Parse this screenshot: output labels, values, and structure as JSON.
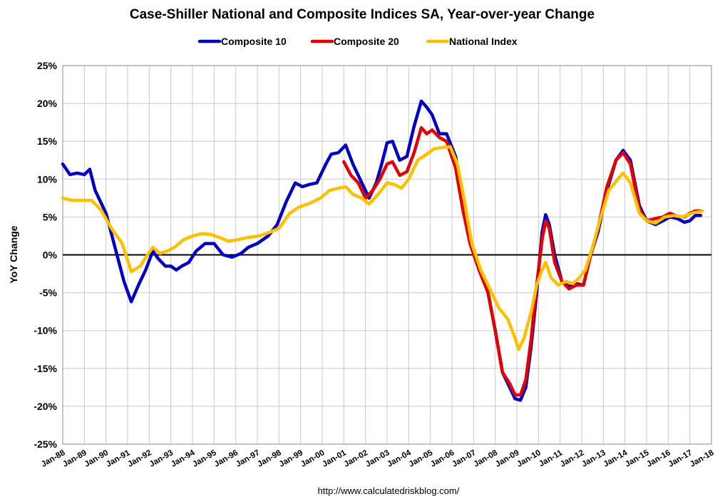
{
  "chart_data": {
    "type": "line",
    "title": "Case-Shiller National and Composite Indices SA, Year-over-year Change",
    "ylabel": "YoY Change",
    "xlabel": "",
    "source": "http://www.calculatedriskblog.com/",
    "ylim": [
      -25,
      25
    ],
    "xlim": [
      "1988-01",
      "2018-01"
    ],
    "yticks": [
      "25%",
      "20%",
      "15%",
      "10%",
      "5%",
      "0%",
      "-5%",
      "-10%",
      "-15%",
      "-20%",
      "-25%"
    ],
    "xticks": [
      "Jan-88",
      "Jan-89",
      "Jan-90",
      "Jan-91",
      "Jan-92",
      "Jan-93",
      "Jan-94",
      "Jan-95",
      "Jan-96",
      "Jan-97",
      "Jan-98",
      "Jan-99",
      "Jan-00",
      "Jan-01",
      "Jan-02",
      "Jan-03",
      "Jan-04",
      "Jan-05",
      "Jan-06",
      "Jan-07",
      "Jan-08",
      "Jan-09",
      "Jan-10",
      "Jan-11",
      "Jan-12",
      "Jan-13",
      "Jan-14",
      "Jan-15",
      "Jan-16",
      "Jan-17",
      "Jan-18"
    ],
    "grid": true,
    "legend": "top-center",
    "series": [
      {
        "name": "Composite 10",
        "color": "#0000c0",
        "points": [
          [
            "1988-01",
            12.0
          ],
          [
            "1988-05",
            10.6
          ],
          [
            "1988-09",
            10.8
          ],
          [
            "1989-01",
            10.6
          ],
          [
            "1989-04",
            11.3
          ],
          [
            "1989-07",
            8.5
          ],
          [
            "1990-01",
            5.5
          ],
          [
            "1990-06",
            1.0
          ],
          [
            "1990-11",
            -3.5
          ],
          [
            "1991-03",
            -6.2
          ],
          [
            "1991-07",
            -4.0
          ],
          [
            "1991-11",
            -2.0
          ],
          [
            "1992-03",
            0.5
          ],
          [
            "1992-06",
            -0.5
          ],
          [
            "1992-10",
            -1.5
          ],
          [
            "1993-01",
            -1.5
          ],
          [
            "1993-04",
            -2.0
          ],
          [
            "1993-07",
            -1.5
          ],
          [
            "1993-11",
            -1.0
          ],
          [
            "1994-03",
            0.5
          ],
          [
            "1994-08",
            1.5
          ],
          [
            "1995-01",
            1.5
          ],
          [
            "1995-06",
            0.0
          ],
          [
            "1995-11",
            -0.3
          ],
          [
            "1996-04",
            0.2
          ],
          [
            "1996-08",
            1.0
          ],
          [
            "1997-01",
            1.5
          ],
          [
            "1997-07",
            2.5
          ],
          [
            "1997-12",
            4.0
          ],
          [
            "1998-05",
            7.0
          ],
          [
            "1998-10",
            9.5
          ],
          [
            "1999-02",
            9.0
          ],
          [
            "1999-06",
            9.3
          ],
          [
            "1999-10",
            9.5
          ],
          [
            "2000-03",
            12.0
          ],
          [
            "2000-06",
            13.3
          ],
          [
            "2000-10",
            13.5
          ],
          [
            "2001-02",
            14.5
          ],
          [
            "2001-06",
            12.0
          ],
          [
            "2001-10",
            10.0
          ],
          [
            "2002-03",
            7.5
          ],
          [
            "2002-07",
            9.5
          ],
          [
            "2002-10",
            12.0
          ],
          [
            "2003-01",
            14.8
          ],
          [
            "2003-04",
            15.0
          ],
          [
            "2003-08",
            12.5
          ],
          [
            "2003-12",
            13.0
          ],
          [
            "2004-04",
            17.0
          ],
          [
            "2004-08",
            20.3
          ],
          [
            "2004-11",
            19.5
          ],
          [
            "2005-02",
            18.5
          ],
          [
            "2005-06",
            16.0
          ],
          [
            "2005-10",
            16.0
          ],
          [
            "2006-03",
            13.0
          ],
          [
            "2006-07",
            7.0
          ],
          [
            "2006-11",
            2.0
          ],
          [
            "2007-04",
            -1.5
          ],
          [
            "2007-09",
            -5.0
          ],
          [
            "2008-01",
            -10.0
          ],
          [
            "2008-05",
            -15.5
          ],
          [
            "2008-09",
            -17.5
          ],
          [
            "2008-12",
            -19.0
          ],
          [
            "2009-03",
            -19.2
          ],
          [
            "2009-06",
            -17.5
          ],
          [
            "2009-09",
            -12.0
          ],
          [
            "2009-12",
            -5.0
          ],
          [
            "2010-03",
            3.0
          ],
          [
            "2010-05",
            5.3
          ],
          [
            "2010-07",
            4.0
          ],
          [
            "2010-10",
            0.0
          ],
          [
            "2011-02",
            -3.5
          ],
          [
            "2011-06",
            -4.2
          ],
          [
            "2011-10",
            -3.8
          ],
          [
            "2012-02",
            -4.0
          ],
          [
            "2012-06",
            0.0
          ],
          [
            "2012-10",
            3.0
          ],
          [
            "2013-03",
            8.5
          ],
          [
            "2013-08",
            12.5
          ],
          [
            "2013-12",
            13.8
          ],
          [
            "2014-04",
            12.5
          ],
          [
            "2014-09",
            6.5
          ],
          [
            "2015-01",
            4.5
          ],
          [
            "2015-06",
            4.0
          ],
          [
            "2015-10",
            4.5
          ],
          [
            "2016-02",
            5.0
          ],
          [
            "2016-06",
            4.8
          ],
          [
            "2016-10",
            4.3
          ],
          [
            "2017-01",
            4.5
          ],
          [
            "2017-04",
            5.2
          ],
          [
            "2017-07",
            5.2
          ]
        ]
      },
      {
        "name": "Composite 20",
        "color": "#e00000",
        "points": [
          [
            "2001-01",
            12.3
          ],
          [
            "2001-05",
            10.5
          ],
          [
            "2001-09",
            9.5
          ],
          [
            "2002-01",
            7.5
          ],
          [
            "2002-05",
            8.5
          ],
          [
            "2002-09",
            10.0
          ],
          [
            "2003-01",
            12.0
          ],
          [
            "2003-04",
            12.3
          ],
          [
            "2003-08",
            10.5
          ],
          [
            "2003-12",
            11.0
          ],
          [
            "2004-04",
            13.5
          ],
          [
            "2004-08",
            16.8
          ],
          [
            "2004-11",
            16.0
          ],
          [
            "2005-02",
            16.5
          ],
          [
            "2005-06",
            15.5
          ],
          [
            "2005-10",
            15.0
          ],
          [
            "2006-03",
            11.5
          ],
          [
            "2006-07",
            6.0
          ],
          [
            "2006-11",
            1.5
          ],
          [
            "2007-04",
            -2.0
          ],
          [
            "2007-09",
            -5.0
          ],
          [
            "2008-01",
            -10.0
          ],
          [
            "2008-05",
            -15.5
          ],
          [
            "2008-09",
            -17.0
          ],
          [
            "2008-12",
            -18.5
          ],
          [
            "2009-03",
            -18.5
          ],
          [
            "2009-06",
            -16.5
          ],
          [
            "2009-09",
            -11.0
          ],
          [
            "2009-12",
            -4.0
          ],
          [
            "2010-03",
            2.0
          ],
          [
            "2010-05",
            4.5
          ],
          [
            "2010-07",
            3.5
          ],
          [
            "2010-10",
            -1.0
          ],
          [
            "2011-02",
            -3.5
          ],
          [
            "2011-06",
            -4.5
          ],
          [
            "2011-10",
            -4.0
          ],
          [
            "2012-02",
            -4.0
          ],
          [
            "2012-06",
            0.0
          ],
          [
            "2012-10",
            3.5
          ],
          [
            "2013-03",
            9.0
          ],
          [
            "2013-08",
            12.5
          ],
          [
            "2013-12",
            13.5
          ],
          [
            "2014-04",
            12.0
          ],
          [
            "2014-09",
            6.0
          ],
          [
            "2015-01",
            4.5
          ],
          [
            "2015-06",
            4.8
          ],
          [
            "2015-10",
            5.0
          ],
          [
            "2016-02",
            5.5
          ],
          [
            "2016-06",
            5.1
          ],
          [
            "2016-10",
            5.0
          ],
          [
            "2017-01",
            5.5
          ],
          [
            "2017-04",
            5.8
          ],
          [
            "2017-07",
            5.8
          ]
        ]
      },
      {
        "name": "National Index",
        "color": "#ffc000",
        "points": [
          [
            "1988-01",
            7.5
          ],
          [
            "1988-06",
            7.2
          ],
          [
            "1988-12",
            7.2
          ],
          [
            "1989-05",
            7.2
          ],
          [
            "1989-10",
            6.0
          ],
          [
            "1990-04",
            3.5
          ],
          [
            "1990-10",
            1.5
          ],
          [
            "1991-03",
            -2.2
          ],
          [
            "1991-08",
            -1.5
          ],
          [
            "1991-12",
            0.0
          ],
          [
            "1992-03",
            1.0
          ],
          [
            "1992-07",
            0.2
          ],
          [
            "1992-11",
            0.5
          ],
          [
            "1993-03",
            1.0
          ],
          [
            "1993-08",
            2.0
          ],
          [
            "1994-01",
            2.5
          ],
          [
            "1994-06",
            2.8
          ],
          [
            "1994-11",
            2.7
          ],
          [
            "1995-04",
            2.3
          ],
          [
            "1995-09",
            1.8
          ],
          [
            "1996-02",
            2.0
          ],
          [
            "1996-08",
            2.3
          ],
          [
            "1997-02",
            2.5
          ],
          [
            "1997-08",
            3.0
          ],
          [
            "1998-01",
            3.5
          ],
          [
            "1998-07",
            5.5
          ],
          [
            "1998-12",
            6.3
          ],
          [
            "1999-06",
            6.8
          ],
          [
            "1999-12",
            7.5
          ],
          [
            "2000-05",
            8.5
          ],
          [
            "2000-10",
            8.8
          ],
          [
            "2001-02",
            9.0
          ],
          [
            "2001-06",
            8.0
          ],
          [
            "2001-11",
            7.5
          ],
          [
            "2002-03",
            6.7
          ],
          [
            "2002-08",
            8.0
          ],
          [
            "2003-01",
            9.5
          ],
          [
            "2003-05",
            9.3
          ],
          [
            "2003-09",
            8.8
          ],
          [
            "2004-01",
            10.0
          ],
          [
            "2004-06",
            12.5
          ],
          [
            "2004-11",
            13.3
          ],
          [
            "2005-03",
            14.0
          ],
          [
            "2005-08",
            14.2
          ],
          [
            "2005-12",
            14.3
          ],
          [
            "2006-04",
            12.0
          ],
          [
            "2006-08",
            7.0
          ],
          [
            "2006-12",
            1.5
          ],
          [
            "2007-05",
            -2.0
          ],
          [
            "2007-10",
            -4.5
          ],
          [
            "2008-03",
            -7.0
          ],
          [
            "2008-08",
            -8.5
          ],
          [
            "2008-12",
            -11.0
          ],
          [
            "2009-02",
            -12.5
          ],
          [
            "2009-05",
            -11.0
          ],
          [
            "2009-09",
            -7.5
          ],
          [
            "2009-12",
            -4.0
          ],
          [
            "2010-03",
            -2.0
          ],
          [
            "2010-05",
            -1.0
          ],
          [
            "2010-08",
            -3.0
          ],
          [
            "2010-12",
            -4.0
          ],
          [
            "2011-04",
            -3.5
          ],
          [
            "2011-08",
            -3.8
          ],
          [
            "2011-11",
            -3.2
          ],
          [
            "2012-03",
            -2.0
          ],
          [
            "2012-07",
            1.0
          ],
          [
            "2012-11",
            4.5
          ],
          [
            "2013-04",
            8.5
          ],
          [
            "2013-09",
            10.0
          ],
          [
            "2013-12",
            10.8
          ],
          [
            "2014-04",
            9.5
          ],
          [
            "2014-09",
            5.5
          ],
          [
            "2015-01",
            4.5
          ],
          [
            "2015-06",
            4.2
          ],
          [
            "2015-11",
            5.0
          ],
          [
            "2016-04",
            5.2
          ],
          [
            "2016-09",
            5.0
          ],
          [
            "2017-02",
            5.5
          ],
          [
            "2017-06",
            5.7
          ],
          [
            "2017-08",
            5.8
          ]
        ]
      }
    ]
  }
}
